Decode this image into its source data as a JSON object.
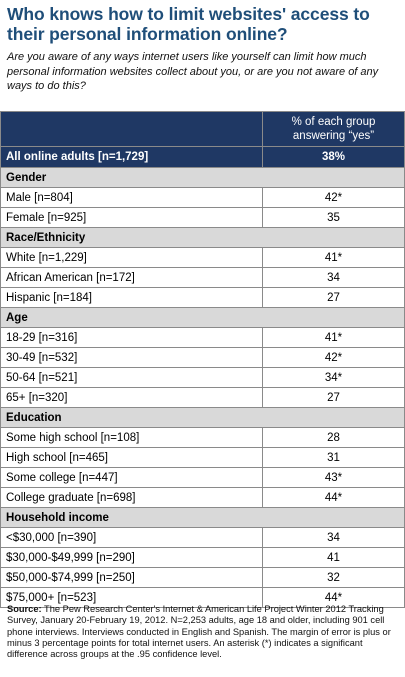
{
  "title": "Who knows how to limit websites' access to their personal information online?",
  "subtitle": "Are you aware of any ways internet users like yourself can limit how much personal information websites collect about you, or are you not aware of any ways to do this?",
  "table": {
    "column_header": "% of each group answering “yes”",
    "all_row": {
      "label": "All online adults  [n=1,729]",
      "value": "38%"
    },
    "sections": [
      {
        "heading": "Gender",
        "rows": [
          {
            "label": "Male [n=804]",
            "value": "42*"
          },
          {
            "label": "Female [n=925]",
            "value": "35"
          }
        ]
      },
      {
        "heading": "Race/Ethnicity",
        "rows": [
          {
            "label": "White [n=1,229]",
            "value": "41*"
          },
          {
            "label": "African American [n=172]",
            "value": "34"
          },
          {
            "label": "Hispanic [n=184]",
            "value": "27"
          }
        ]
      },
      {
        "heading": "Age",
        "rows": [
          {
            "label": "18-29 [n=316]",
            "value": "41*"
          },
          {
            "label": "30-49 [n=532]",
            "value": "42*"
          },
          {
            "label": "50-64 [n=521]",
            "value": "34*"
          },
          {
            "label": "65+ [n=320]",
            "value": "27"
          }
        ]
      },
      {
        "heading": "Education",
        "rows": [
          {
            "label": "Some high school [n=108]",
            "value": "28"
          },
          {
            "label": "High school [n=465]",
            "value": "31"
          },
          {
            "label": "Some college [n=447]",
            "value": "43*"
          },
          {
            "label": "College graduate [n=698]",
            "value": "44*"
          }
        ]
      },
      {
        "heading": "Household income",
        "rows": [
          {
            "label": "<$30,000 [n=390]",
            "value": "34"
          },
          {
            "label": "$30,000-$49,999 [n=290]",
            "value": "41"
          },
          {
            "label": "$50,000-$74,999 [n=250]",
            "value": "32"
          },
          {
            "label": "$75,000+ [n=523]",
            "value": "44*"
          }
        ]
      }
    ]
  },
  "source": {
    "label": "Source:",
    "text": " The Pew Research Center's Internet & American Life Project Winter 2012 Tracking Survey, January 20-February 19, 2012. N=2,253 adults, age 18 and older, including 901 cell phone interviews. Interviews conducted in English and Spanish. The margin of error is plus or minus 3 percentage points for total internet users. An asterisk (*) indicates a significant difference across groups at the .95 confidence level."
  },
  "colors": {
    "header_bg": "#1f3864",
    "title": "#1f4e79",
    "section_bg": "#d9d9d9"
  }
}
